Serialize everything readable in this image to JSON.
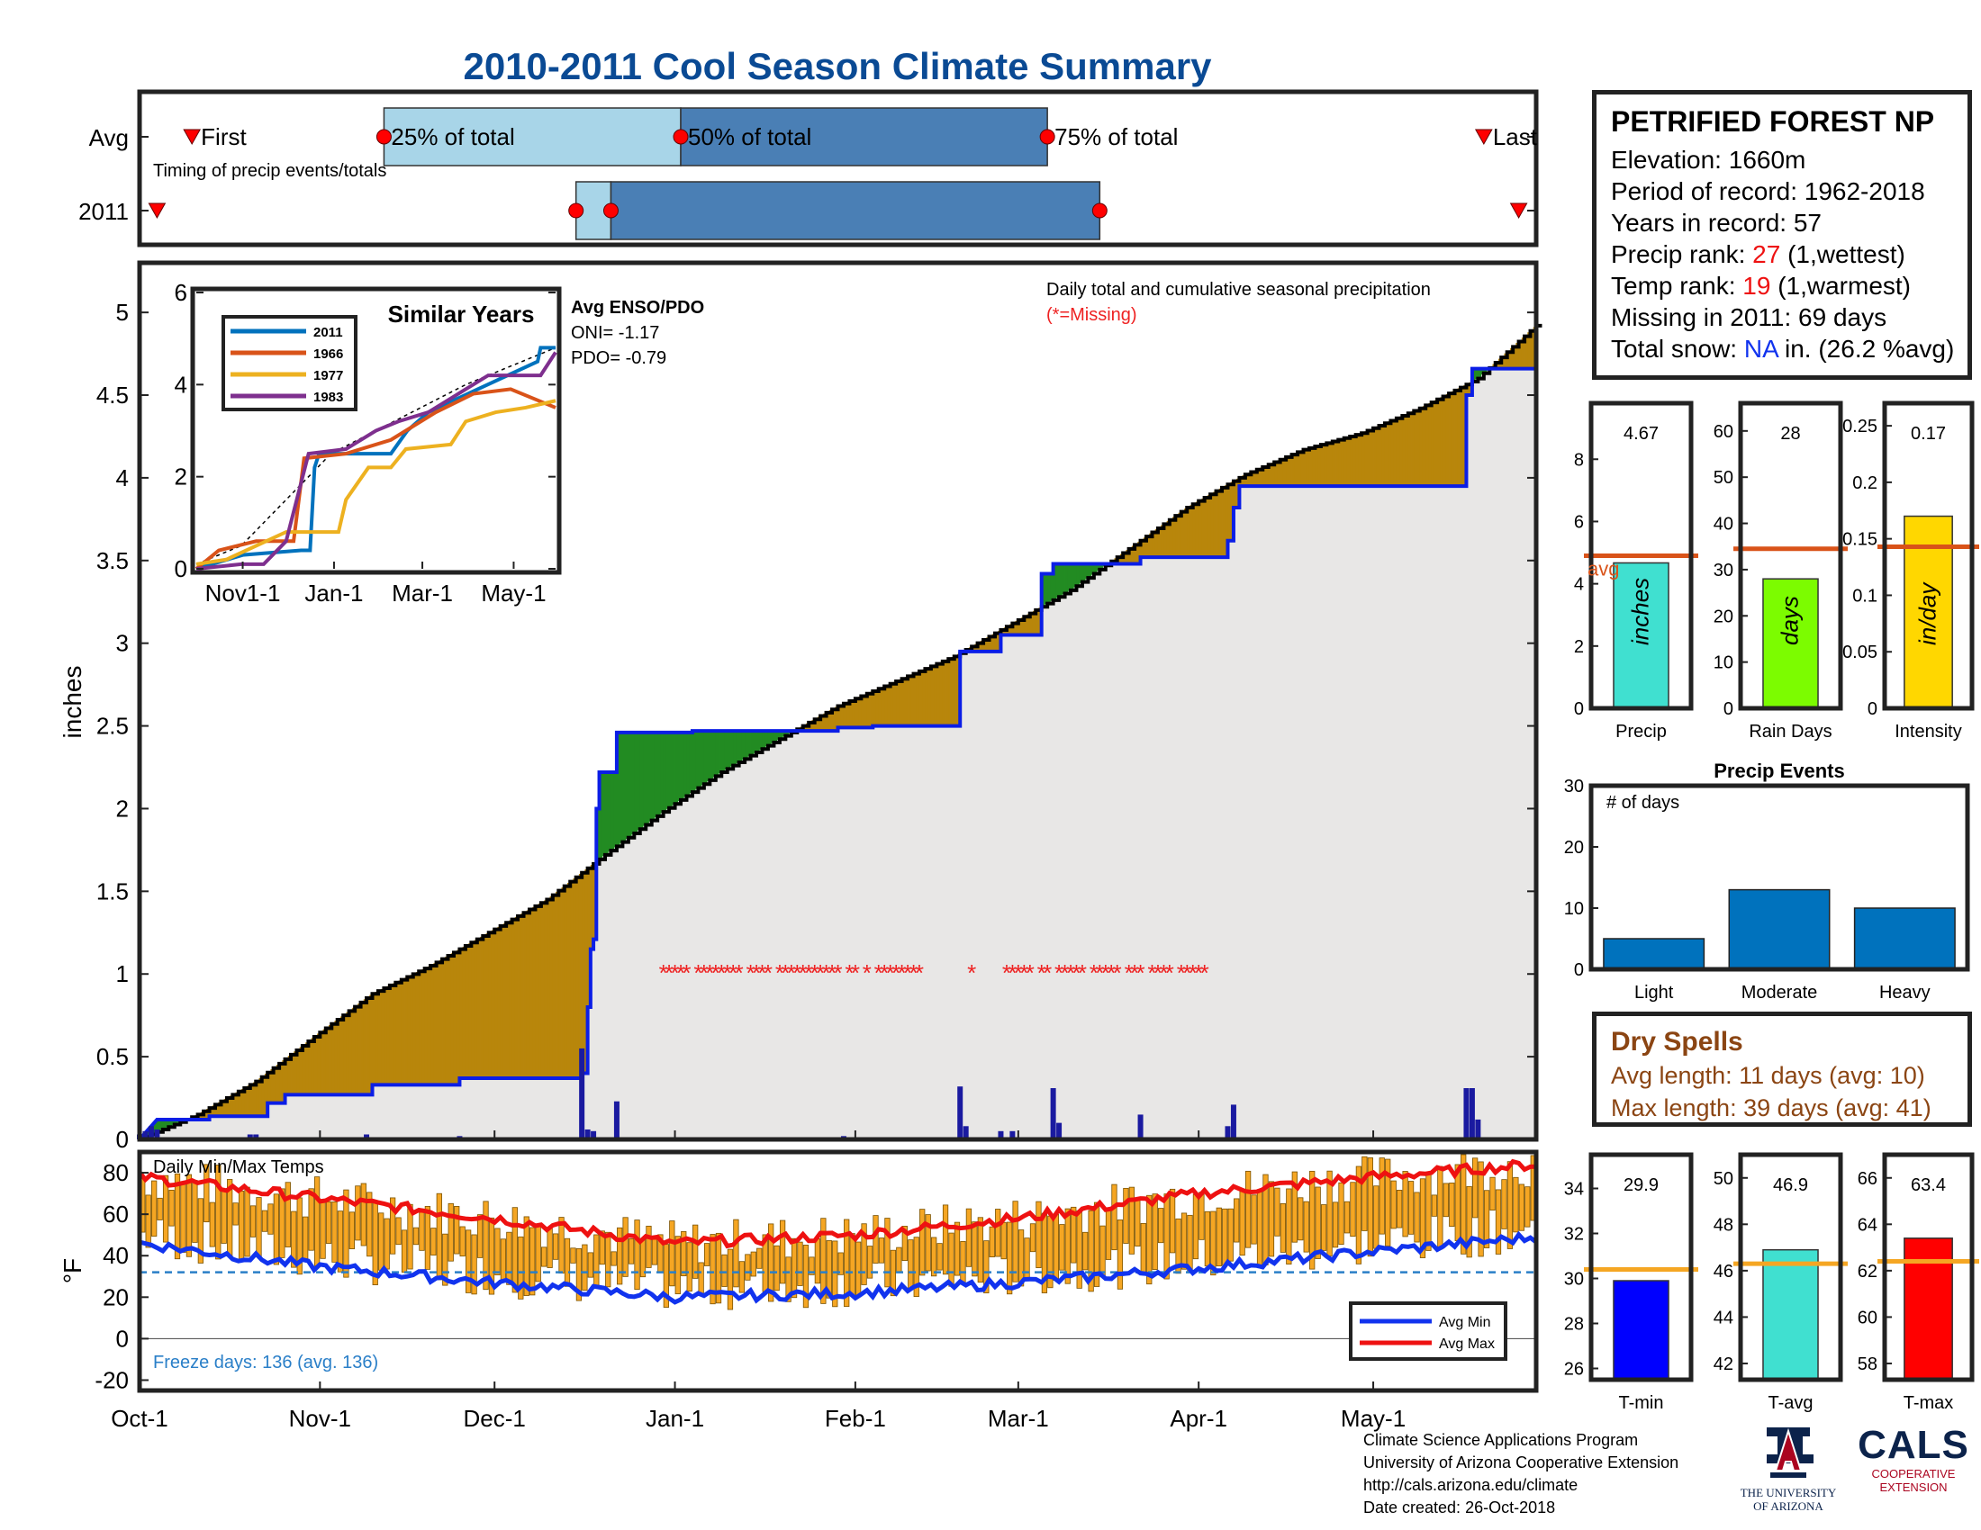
{
  "title": "2010-2011 Cool Season Climate Summary",
  "colors": {
    "title": "#0a4a94",
    "panel_border": "#222222",
    "precip_fill": "#b8860b",
    "precip_deficit": "#228b22",
    "precip_bg": "#e8e7e6",
    "year_line": "#0b1ee6",
    "missing": "#ee2222",
    "avg_line_orange": "#d95319",
    "temp_bar": "#f5a623",
    "avg_max": "#ee1111",
    "avg_min": "#1133ee",
    "freeze_line": "#2a7fc8",
    "box_light": "#a8d5e8",
    "box_dark": "#4a7fb5",
    "dry_text": "#8b4513"
  },
  "timing": {
    "row_labels": [
      "Avg",
      "2011"
    ],
    "labels": [
      "First",
      "25% of total",
      "50% of total",
      "75% of total",
      "Last"
    ],
    "caption": "Timing of precip events/totals",
    "avg": {
      "first": 3,
      "p25": 14,
      "p50": 31,
      "p75": 52,
      "last": 77
    },
    "y2011": {
      "first": 1,
      "p25": 25,
      "p50": 27,
      "p75": 55,
      "last": 79
    },
    "x_max": 80
  },
  "station": {
    "name": "PETRIFIED FOREST NP",
    "elevation": "Elevation: 1660m",
    "period": "Period of record: 1962-2018",
    "years": "Years in record: 57",
    "precip_rank_label": "Precip rank: ",
    "precip_rank_value": "27",
    "precip_rank_suffix": " (1,wettest)",
    "temp_rank_label": "Temp rank: ",
    "temp_rank_value": "19",
    "temp_rank_suffix": " (1,warmest)",
    "missing": "Missing in 2011: 69 days",
    "snow_label": "Total snow: ",
    "snow_value": "NA",
    "snow_suffix": " in. (26.2 %avg)"
  },
  "chart_data": [
    {
      "id": "main_precip",
      "type": "area",
      "ylabel": "inches",
      "ylim": [
        0,
        5.3
      ],
      "yticks": [
        0,
        0.5,
        1,
        1.5,
        2,
        2.5,
        3,
        3.5,
        4,
        4.5,
        5
      ],
      "day_range": [
        0,
        240
      ],
      "annotation": "Daily total and cumulative seasonal precipitation",
      "missing_note": "(*=Missing)",
      "missing_y": 1.0,
      "enso_title": "Avg ENSO/PDO",
      "oni": "ONI= -1.17",
      "pdo": "PDO= -0.79",
      "avg_cumulative": [
        [
          0,
          0
        ],
        [
          10,
          0.15
        ],
        [
          20,
          0.35
        ],
        [
          30,
          0.62
        ],
        [
          40,
          0.88
        ],
        [
          50,
          1.05
        ],
        [
          60,
          1.25
        ],
        [
          70,
          1.45
        ],
        [
          80,
          1.72
        ],
        [
          90,
          1.98
        ],
        [
          100,
          2.22
        ],
        [
          110,
          2.42
        ],
        [
          120,
          2.62
        ],
        [
          130,
          2.77
        ],
        [
          140,
          2.92
        ],
        [
          150,
          3.12
        ],
        [
          160,
          3.32
        ],
        [
          170,
          3.57
        ],
        [
          180,
          3.82
        ],
        [
          190,
          4.02
        ],
        [
          200,
          4.17
        ],
        [
          210,
          4.27
        ],
        [
          220,
          4.42
        ],
        [
          230,
          4.6
        ],
        [
          240,
          4.92
        ]
      ],
      "year_cumulative": [
        [
          0,
          0
        ],
        [
          3,
          0.12
        ],
        [
          12,
          0.12
        ],
        [
          12,
          0.14
        ],
        [
          22,
          0.14
        ],
        [
          22,
          0.22
        ],
        [
          25,
          0.22
        ],
        [
          25,
          0.27
        ],
        [
          40,
          0.27
        ],
        [
          40,
          0.33
        ],
        [
          55,
          0.33
        ],
        [
          55,
          0.37
        ],
        [
          76,
          0.37
        ],
        [
          76,
          0.4
        ],
        [
          77,
          0.4
        ],
        [
          77,
          0.8
        ],
        [
          77.5,
          0.8
        ],
        [
          77.5,
          1.15
        ],
        [
          78,
          1.15
        ],
        [
          78,
          1.21
        ],
        [
          78.5,
          1.21
        ],
        [
          78.5,
          2.0
        ],
        [
          79,
          2.0
        ],
        [
          79,
          2.22
        ],
        [
          82,
          2.22
        ],
        [
          82,
          2.46
        ],
        [
          95,
          2.46
        ],
        [
          95,
          2.47
        ],
        [
          120,
          2.47
        ],
        [
          120,
          2.49
        ],
        [
          126,
          2.49
        ],
        [
          126,
          2.5
        ],
        [
          141,
          2.5
        ],
        [
          141,
          2.5
        ],
        [
          141,
          2.65
        ],
        [
          141,
          2.95
        ],
        [
          148,
          2.95
        ],
        [
          148,
          3.05
        ],
        [
          155,
          3.05
        ],
        [
          155,
          3.42
        ],
        [
          157,
          3.42
        ],
        [
          157,
          3.48
        ],
        [
          172,
          3.48
        ],
        [
          172,
          3.52
        ],
        [
          187,
          3.52
        ],
        [
          187,
          3.62
        ],
        [
          188,
          3.62
        ],
        [
          188,
          3.82
        ],
        [
          189,
          3.82
        ],
        [
          189,
          3.95
        ],
        [
          228,
          3.95
        ],
        [
          228,
          4.5
        ],
        [
          229,
          4.5
        ],
        [
          229,
          4.66
        ],
        [
          240,
          4.66
        ]
      ],
      "daily_bars": [
        [
          0,
          0.03
        ],
        [
          1,
          0.05
        ],
        [
          2,
          0.08
        ],
        [
          3,
          0.06
        ],
        [
          19,
          0.03
        ],
        [
          20,
          0.03
        ],
        [
          39,
          0.03
        ],
        [
          55,
          0.02
        ],
        [
          76,
          0.55
        ],
        [
          77,
          0.06
        ],
        [
          78,
          0.05
        ],
        [
          82,
          0.23
        ],
        [
          121,
          0.02
        ],
        [
          141,
          0.32
        ],
        [
          142,
          0.08
        ],
        [
          148,
          0.05
        ],
        [
          150,
          0.05
        ],
        [
          157,
          0.31
        ],
        [
          158,
          0.1
        ],
        [
          172,
          0.15
        ],
        [
          187,
          0.08
        ],
        [
          188,
          0.21
        ],
        [
          228,
          0.31
        ],
        [
          229,
          0.31
        ],
        [
          230,
          0.12
        ]
      ],
      "missing_days": [
        90,
        91,
        92,
        93,
        94,
        96,
        97,
        98,
        99,
        100,
        101,
        102,
        103,
        105,
        106,
        107,
        108,
        110,
        111,
        112,
        113,
        114,
        115,
        116,
        117,
        118,
        119,
        120,
        122,
        123,
        125,
        127,
        128,
        129,
        130,
        131,
        132,
        133,
        134,
        143,
        149,
        150,
        151,
        152,
        153,
        155,
        156,
        158,
        159,
        160,
        161,
        162,
        164,
        165,
        166,
        167,
        168,
        170,
        171,
        172,
        174,
        175,
        176,
        177,
        179,
        180,
        181,
        182,
        183
      ],
      "x_ticks": [
        {
          "label": "Oct-1",
          "day": 0
        },
        {
          "label": "Nov-1",
          "day": 31
        },
        {
          "label": "Dec-1",
          "day": 61
        },
        {
          "label": "Jan-1",
          "day": 92
        },
        {
          "label": "Feb-1",
          "day": 123
        },
        {
          "label": "Mar-1",
          "day": 151
        },
        {
          "label": "Apr-1",
          "day": 182
        },
        {
          "label": "May-1",
          "day": 212
        }
      ]
    },
    {
      "id": "similar_years",
      "type": "line",
      "title": "Similar Years",
      "ylim": [
        0,
        6
      ],
      "yticks": [
        0,
        2,
        4,
        6
      ],
      "x_ticks": [
        {
          "label": "Nov1-1",
          "day": 31
        },
        {
          "label": "Jan-1",
          "day": 92
        },
        {
          "label": "Mar-1",
          "day": 151
        },
        {
          "label": "May-1",
          "day": 212
        }
      ],
      "series": [
        {
          "name": "2011",
          "color": "#0072bd",
          "points": [
            [
              0,
              0
            ],
            [
              31,
              0.3
            ],
            [
              70,
              0.4
            ],
            [
              76,
              0.4
            ],
            [
              79,
              2.2
            ],
            [
              82,
              2.5
            ],
            [
              130,
              2.5
            ],
            [
              141,
              3.0
            ],
            [
              155,
              3.4
            ],
            [
              188,
              3.9
            ],
            [
              228,
              4.5
            ],
            [
              230,
              4.8
            ],
            [
              240,
              4.8
            ]
          ]
        },
        {
          "name": "1966",
          "color": "#d95319",
          "points": [
            [
              0,
              0
            ],
            [
              15,
              0.4
            ],
            [
              40,
              0.6
            ],
            [
              65,
              0.6
            ],
            [
              72,
              2.4
            ],
            [
              100,
              2.5
            ],
            [
              130,
              2.8
            ],
            [
              160,
              3.4
            ],
            [
              185,
              3.8
            ],
            [
              210,
              3.9
            ],
            [
              240,
              3.5
            ]
          ]
        },
        {
          "name": "1977",
          "color": "#edb120",
          "points": [
            [
              0,
              0.1
            ],
            [
              20,
              0.2
            ],
            [
              60,
              0.8
            ],
            [
              95,
              0.8
            ],
            [
              100,
              1.5
            ],
            [
              115,
              2.2
            ],
            [
              130,
              2.2
            ],
            [
              140,
              2.6
            ],
            [
              170,
              2.7
            ],
            [
              180,
              3.2
            ],
            [
              200,
              3.4
            ],
            [
              220,
              3.5
            ],
            [
              240,
              3.65
            ]
          ]
        },
        {
          "name": "1983",
          "color": "#7e2f8e",
          "points": [
            [
              0,
              0
            ],
            [
              30,
              0.1
            ],
            [
              45,
              0.1
            ],
            [
              60,
              0.6
            ],
            [
              75,
              2.5
            ],
            [
              100,
              2.6
            ],
            [
              120,
              3.0
            ],
            [
              135,
              3.2
            ],
            [
              155,
              3.4
            ],
            [
              175,
              3.8
            ],
            [
              195,
              4.2
            ],
            [
              215,
              4.2
            ],
            [
              230,
              4.2
            ],
            [
              240,
              4.7
            ]
          ]
        }
      ],
      "avg_dashed": [
        [
          0,
          0.1
        ],
        [
          30,
          0.5
        ],
        [
          60,
          1.5
        ],
        [
          90,
          2.5
        ],
        [
          120,
          3.0
        ],
        [
          150,
          3.5
        ],
        [
          180,
          4.0
        ],
        [
          210,
          4.4
        ],
        [
          240,
          4.8
        ]
      ]
    },
    {
      "id": "temperature",
      "type": "bar",
      "label": "Daily Min/Max Temps",
      "ylabel": "°F",
      "ylim": [
        -25,
        90
      ],
      "yticks": [
        -20,
        0,
        20,
        40,
        60,
        80
      ],
      "freeze_text": "Freeze days: 136 (avg. 136)",
      "freeze_line": 32,
      "legend": [
        "Avg Min",
        "Avg Max"
      ],
      "avg_max": [
        [
          0,
          78
        ],
        [
          30,
          68
        ],
        [
          61,
          58
        ],
        [
          92,
          46
        ],
        [
          123,
          50
        ],
        [
          151,
          58
        ],
        [
          182,
          70
        ],
        [
          212,
          78
        ],
        [
          240,
          84
        ]
      ],
      "avg_min": [
        [
          0,
          46
        ],
        [
          30,
          35
        ],
        [
          61,
          27
        ],
        [
          92,
          20
        ],
        [
          123,
          22
        ],
        [
          151,
          27
        ],
        [
          182,
          34
        ],
        [
          212,
          42
        ],
        [
          240,
          49
        ]
      ]
    },
    {
      "id": "precip_stats",
      "type": "bar",
      "panels": [
        {
          "label": "Precip",
          "value": 4.67,
          "value_text": "4.67",
          "avg": 4.9,
          "avg_label": "avg",
          "ylim": [
            0,
            9.8
          ],
          "yticks": [
            0,
            2,
            4,
            6,
            8
          ],
          "color": "#40e0d0",
          "unit": "inches"
        },
        {
          "label": "Rain Days",
          "value": 28,
          "value_text": "28",
          "avg": 34.5,
          "ylim": [
            0,
            66
          ],
          "yticks": [
            0,
            10,
            20,
            30,
            40,
            50,
            60
          ],
          "color": "#7cfc00",
          "unit": "days"
        },
        {
          "label": "Intensity",
          "value": 0.17,
          "value_text": "0.17",
          "avg": 0.143,
          "ylim": [
            0,
            0.27
          ],
          "yticks": [
            0,
            0.05,
            0.1,
            0.15,
            0.2,
            0.25
          ],
          "color": "#ffd700",
          "unit": "in/day"
        }
      ]
    },
    {
      "id": "precip_events",
      "type": "bar",
      "title": "Precip Events",
      "ylabel_inside": "# of days",
      "categories": [
        "Light",
        "Moderate",
        "Heavy"
      ],
      "values": [
        5,
        13,
        10
      ],
      "ylim": [
        0,
        30
      ],
      "yticks": [
        0,
        10,
        20,
        30
      ],
      "color": "#0072bd"
    },
    {
      "id": "temp_stats",
      "type": "bar",
      "panels": [
        {
          "label": "T-min",
          "value": 29.9,
          "value_text": "29.9",
          "avg": 30.4,
          "ylim": [
            25.5,
            35.5
          ],
          "yticks": [
            26,
            28,
            30,
            32,
            34
          ],
          "color": "#0000ff"
        },
        {
          "label": "T-avg",
          "value": 46.9,
          "value_text": "46.9",
          "avg": 46.3,
          "ylim": [
            41.3,
            51
          ],
          "yticks": [
            42,
            44,
            46,
            48,
            50
          ],
          "color": "#40e0d0"
        },
        {
          "label": "T-max",
          "value": 63.4,
          "value_text": "63.4",
          "avg": 62.4,
          "ylim": [
            57.3,
            67
          ],
          "yticks": [
            58,
            60,
            62,
            64,
            66
          ],
          "color": "#ff0000"
        }
      ]
    }
  ],
  "dry_spells": {
    "title": "Dry Spells",
    "avg_length": "Avg length: 11 days (avg: 10)",
    "max_length": "Max length: 39 days (avg: 41)"
  },
  "footer": {
    "lines": [
      "Climate Science Applications Program",
      "University of Arizona Cooperative Extension",
      "http://cals.arizona.edu/climate",
      " Date created: 26-Oct-2018"
    ]
  },
  "logos": {
    "ua_lines": [
      "THE UNIVERSITY",
      "OF ARIZONA"
    ],
    "cals_word": "CALS",
    "cals_lines": [
      "COOPERATIVE",
      "EXTENSION"
    ]
  }
}
